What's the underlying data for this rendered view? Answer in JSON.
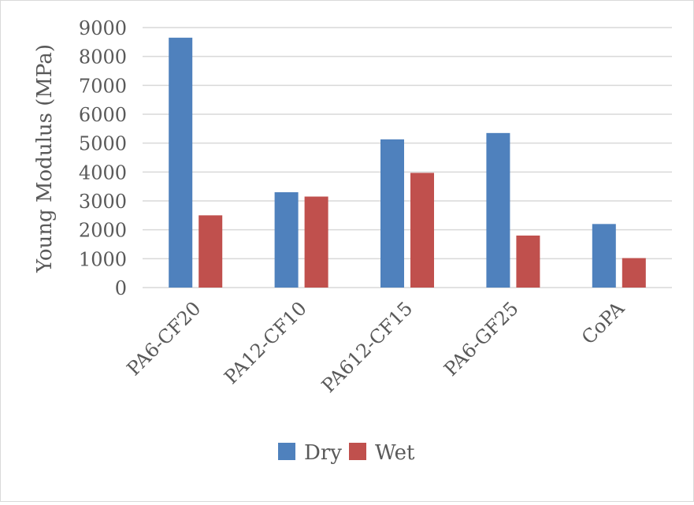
{
  "chart_data": {
    "type": "bar",
    "title": "",
    "xlabel": "",
    "ylabel": "Young Modulus (MPa)",
    "ylim": [
      0,
      9000
    ],
    "yticks": [
      0,
      1000,
      2000,
      3000,
      4000,
      5000,
      6000,
      7000,
      8000,
      9000
    ],
    "grid": true,
    "legend_position": "bottom",
    "categories": [
      "PA6-CF20",
      "PA12-CF10",
      "PA612-CF15",
      "PA6-GF25",
      "CoPA"
    ],
    "series": [
      {
        "name": "Dry",
        "color": "#4f81bd",
        "values": [
          8650,
          3300,
          5130,
          5350,
          2200
        ]
      },
      {
        "name": "Wet",
        "color": "#c0504d",
        "values": [
          2500,
          3150,
          3970,
          1800,
          1020
        ]
      }
    ]
  }
}
